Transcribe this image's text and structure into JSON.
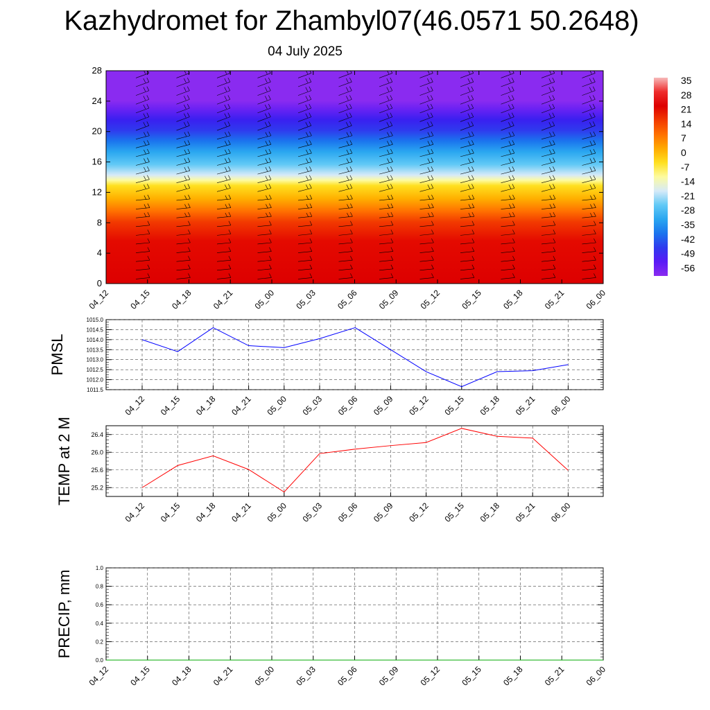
{
  "title": "Kazhydromet for Zhambyl07(46.0571 50.2648)",
  "subtitle": "04 July 2025",
  "chart_data": [
    {
      "type": "heatmap",
      "panel": "top",
      "y_ticks": [
        "0",
        "4",
        "8",
        "12",
        "16",
        "20",
        "24",
        "28"
      ],
      "ylim": [
        0,
        28
      ],
      "x_ticks": [
        "04_12",
        "04_15",
        "04_18",
        "04_21",
        "05_00",
        "05_03",
        "05_06",
        "05_09",
        "05_12",
        "05_15",
        "05_18",
        "05_21",
        "06_00"
      ],
      "colorbar_labels": [
        "35",
        "28",
        "21",
        "14",
        "7",
        "0",
        "-7",
        "-14",
        "-21",
        "-28",
        "-35",
        "-42",
        "-49",
        "-56"
      ],
      "colorbar_colors": [
        "#f7b9b9",
        "#ee2c2c",
        "#dd0000",
        "#f23a00",
        "#ff7000",
        "#ffaa00",
        "#ffe020",
        "#fdfba0",
        "#d6eaf8",
        "#61c9f6",
        "#2aa6f0",
        "#1b74ee",
        "#2f3aee",
        "#5a1af6",
        "#8a2bf0"
      ],
      "bands": [
        {
          "from": 0,
          "to": 10.5,
          "value": 28
        },
        {
          "from": 10.5,
          "to": 13.5,
          "value": 7
        },
        {
          "from": 13.5,
          "to": 15,
          "value": -14
        },
        {
          "from": 15,
          "to": 19,
          "value": -35
        },
        {
          "from": 19,
          "to": 22.5,
          "value": -56
        },
        {
          "from": 22.5,
          "to": 28,
          "value": -60
        }
      ]
    },
    {
      "type": "line",
      "panel": "pmsl",
      "ylabel": "PMSL",
      "y_ticks": [
        "1011.5",
        "1012.0",
        "1012.5",
        "1013.0",
        "1013.5",
        "1014.0",
        "1014.5",
        "1015.0"
      ],
      "ylim": [
        1011.5,
        1015.0
      ],
      "categories": [
        "04_12",
        "04_15",
        "04_18",
        "04_21",
        "05_00",
        "05_03",
        "05_06",
        "05_09",
        "05_12",
        "05_15",
        "05_18",
        "05_21",
        "06_00"
      ],
      "series": [
        {
          "values": [
            1014.0,
            1013.4,
            1014.6,
            1013.7,
            1013.6,
            1014.05,
            1014.6,
            1013.5,
            1012.4,
            1011.65,
            1012.4,
            1012.45,
            1012.75
          ],
          "color": "#0000ff"
        }
      ]
    },
    {
      "type": "line",
      "panel": "temp",
      "ylabel": "TEMP at 2 M",
      "y_ticks": [
        "25.2",
        "25.6",
        "26.0",
        "26.4"
      ],
      "ylim": [
        25.0,
        26.6
      ],
      "categories": [
        "04_12",
        "04_15",
        "04_18",
        "04_21",
        "05_00",
        "05_03",
        "05_06",
        "05_09",
        "05_12",
        "05_15",
        "05_18",
        "05_21",
        "06_00"
      ],
      "series": [
        {
          "values": [
            25.2,
            25.7,
            25.92,
            25.61,
            25.1,
            25.97,
            26.07,
            26.15,
            26.22,
            26.54,
            26.36,
            26.32,
            25.59
          ],
          "color": "#ff0000"
        }
      ]
    },
    {
      "type": "line",
      "panel": "precip",
      "ylabel": "PRECIP, mm",
      "y_ticks": [
        "0.0",
        "0.2",
        "0.4",
        "0.6",
        "0.8",
        "1.0"
      ],
      "ylim": [
        0.0,
        1.0
      ],
      "categories": [
        "04_12",
        "04_15",
        "04_18",
        "04_21",
        "05_00",
        "05_03",
        "05_06",
        "05_09",
        "05_12",
        "05_15",
        "05_18",
        "05_21",
        "06_00"
      ],
      "series": [
        {
          "values": [
            0,
            0,
            0,
            0,
            0,
            0,
            0,
            0,
            0,
            0,
            0,
            0,
            0
          ],
          "color": "#00aa00"
        }
      ]
    }
  ]
}
